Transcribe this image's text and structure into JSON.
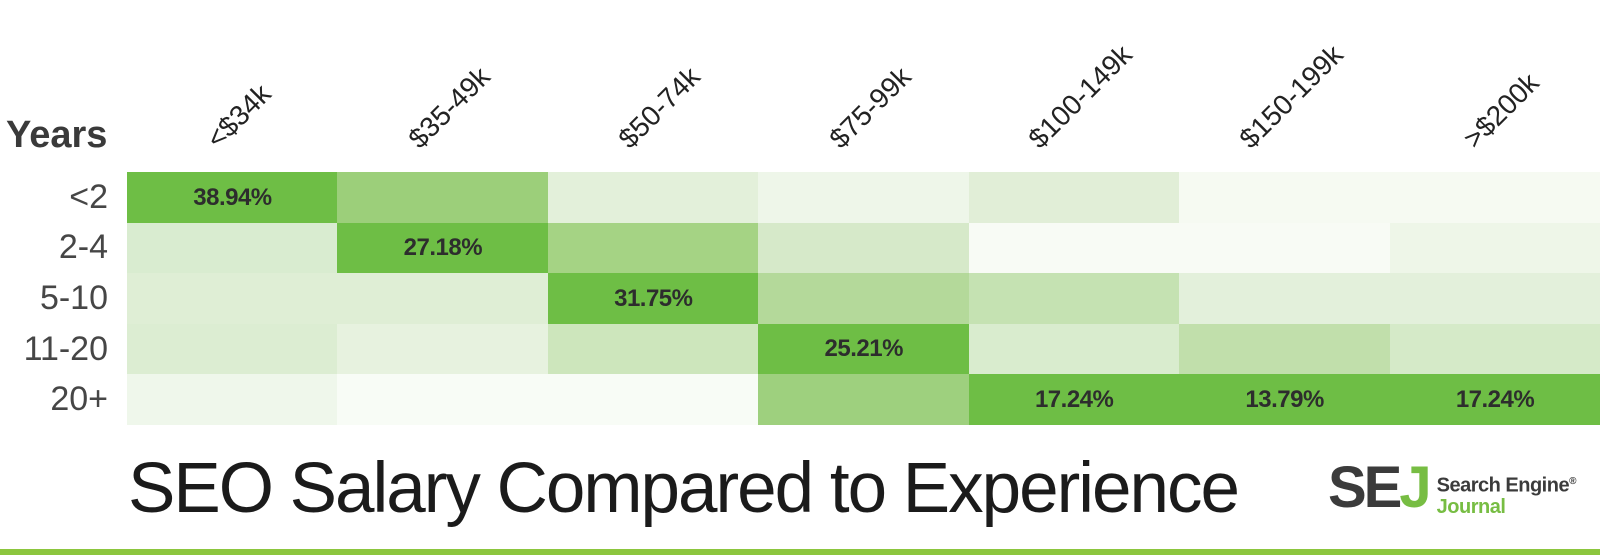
{
  "title": "SEO Salary Compared to Experience",
  "axis": {
    "corner_label": "Years"
  },
  "chart_data": {
    "type": "heatmap",
    "y_axis_label": "Years",
    "x_categories": [
      "<$34k",
      "$35-49k",
      "$50-74k",
      "$75-99k",
      "$100-149k",
      "$150-199k",
      ">$200k"
    ],
    "y_categories": [
      "<2",
      "2-4",
      "5-10",
      "11-20",
      "20+"
    ],
    "highlight_color": "#6ebe45",
    "labeled_values": [
      {
        "row": "<2",
        "col": "<$34k",
        "value": "38.94%"
      },
      {
        "row": "2-4",
        "col": "$35-49k",
        "value": "27.18%"
      },
      {
        "row": "5-10",
        "col": "$50-74k",
        "value": "31.75%"
      },
      {
        "row": "11-20",
        "col": "$75-99k",
        "value": "25.21%"
      },
      {
        "row": "20+",
        "col": "$100-149k",
        "value": "17.24%"
      },
      {
        "row": "20+",
        "col": "$150-199k",
        "value": "13.79%"
      },
      {
        "row": "20+",
        "col": ">$200k",
        "value": "17.24%"
      }
    ],
    "cells": [
      [
        {
          "color": "#6ebe45",
          "label": "38.94%"
        },
        {
          "color": "#9ccf7a",
          "label": ""
        },
        {
          "color": "#e3f0da",
          "label": ""
        },
        {
          "color": "#eef6e9",
          "label": ""
        },
        {
          "color": "#e1eed7",
          "label": ""
        },
        {
          "color": "#f6faf2",
          "label": ""
        },
        {
          "color": "#f6faf2",
          "label": ""
        }
      ],
      [
        {
          "color": "#d9ecd0",
          "label": ""
        },
        {
          "color": "#6ebe45",
          "label": "27.18%"
        },
        {
          "color": "#a5d384",
          "label": ""
        },
        {
          "color": "#d6e9c9",
          "label": ""
        },
        {
          "color": "#f8fbf5",
          "label": ""
        },
        {
          "color": "#f8fbf5",
          "label": ""
        },
        {
          "color": "#eef6e8",
          "label": ""
        }
      ],
      [
        {
          "color": "#dfeed5",
          "label": ""
        },
        {
          "color": "#dfeed5",
          "label": ""
        },
        {
          "color": "#6ebe45",
          "label": "31.75%"
        },
        {
          "color": "#b4d99a",
          "label": ""
        },
        {
          "color": "#c5e2b2",
          "label": ""
        },
        {
          "color": "#e3f0db",
          "label": ""
        },
        {
          "color": "#e3f0db",
          "label": ""
        }
      ],
      [
        {
          "color": "#dcedd2",
          "label": ""
        },
        {
          "color": "#e7f2df",
          "label": ""
        },
        {
          "color": "#cde6bc",
          "label": ""
        },
        {
          "color": "#6ebe45",
          "label": "25.21%"
        },
        {
          "color": "#d9ecce",
          "label": ""
        },
        {
          "color": "#c1dfab",
          "label": ""
        },
        {
          "color": "#d5eac8",
          "label": ""
        }
      ],
      [
        {
          "color": "#eff7eb",
          "label": ""
        },
        {
          "color": "#f8fcf6",
          "label": ""
        },
        {
          "color": "#f8fcf6",
          "label": ""
        },
        {
          "color": "#9ed07e",
          "label": ""
        },
        {
          "color": "#6ebe45",
          "label": "17.24%"
        },
        {
          "color": "#6ebe45",
          "label": "13.79%"
        },
        {
          "color": "#6ebe45",
          "label": "17.24%"
        }
      ]
    ]
  },
  "logo": {
    "se": "SE",
    "j": "J",
    "line1": "Search Engine",
    "registered": "®",
    "line2": "Journal",
    "dark_color": "#3b3b3b",
    "green_color": "#77bd43"
  },
  "footer_bar_color": "#8cc63e"
}
